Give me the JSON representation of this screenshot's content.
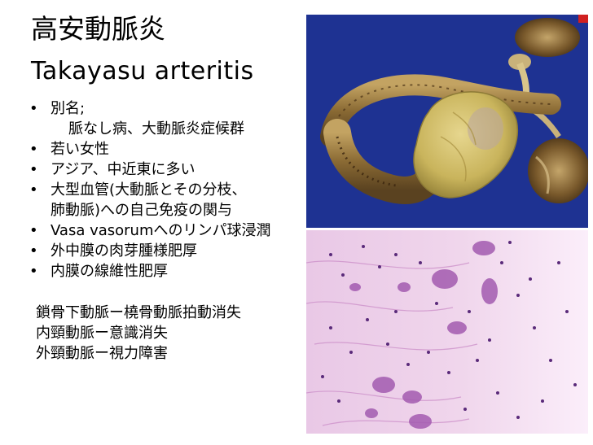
{
  "title": {
    "ja": "高安動脈炎",
    "en": "Takayasu arteritis"
  },
  "bullets": [
    {
      "line1": "別名;",
      "sub": "脈なし病、大動脈炎症候群"
    },
    {
      "line1": "若い女性"
    },
    {
      "line1": "アジア、中近東に多い"
    },
    {
      "line1": "大型血管(大動脈とその分枝、",
      "cont": "肺動脈)への自己免疫の関与"
    },
    {
      "line1": "Vasa vasorumへのリンパ球浸潤"
    },
    {
      "line1": "外中膜の肉芽腫様肥厚"
    },
    {
      "line1": "内膜の線維性肥厚"
    }
  ],
  "notes": [
    "鎖骨下動脈ー橈骨動脈拍動消失",
    "内頸動脈ー意識消失",
    "外頸動脈ー視力障害"
  ],
  "colors": {
    "photo_background": "#1d2f8e",
    "histology_background": "#f1dcef",
    "histology_stain": "#a35bb0"
  }
}
